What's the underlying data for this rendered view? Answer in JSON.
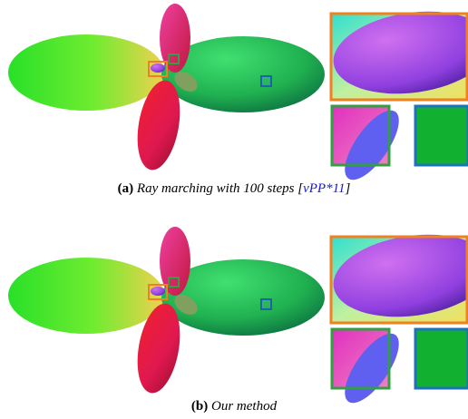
{
  "captions": [
    {
      "label": "(a)",
      "text": "Ray marching with 100 steps [",
      "citation": "vPP*11",
      "suffix": "]"
    },
    {
      "label": "(b)",
      "text": "Our method"
    }
  ]
}
